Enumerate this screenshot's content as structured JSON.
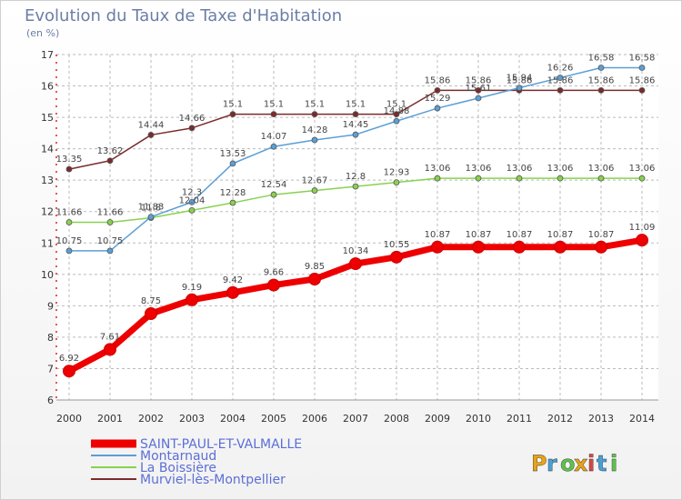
{
  "title": "Evolution du Taux de Taxe d'Habitation",
  "unit": "(en %)",
  "logo": "Proxiti",
  "chart_data": {
    "type": "line",
    "title": "Evolution du Taux de Taxe d'Habitation",
    "ylabel": "(en %)",
    "x": [
      "2000",
      "2001",
      "2002",
      "2003",
      "2004",
      "2005",
      "2006",
      "2007",
      "2008",
      "2009",
      "2010",
      "2011",
      "2012",
      "2013",
      "2014"
    ],
    "ylim": [
      6,
      17
    ],
    "yticks": [
      "6",
      "7",
      "8",
      "9",
      "10",
      "11",
      "12",
      "13",
      "14",
      "15",
      "16",
      "17"
    ],
    "grid": true,
    "legend_position": "bottom-left",
    "series": [
      {
        "name": "SAINT-PAUL-ET-VALMALLE",
        "color": "#ee0000",
        "values": [
          6.92,
          7.61,
          8.75,
          9.19,
          9.42,
          9.66,
          9.85,
          10.34,
          10.55,
          10.87,
          10.87,
          10.87,
          10.87,
          10.87,
          11.09
        ],
        "labels": [
          "6.92",
          "7.61",
          "8.75",
          "9.19",
          "9.42",
          "9.66",
          "9.85",
          "10.34",
          "10.55",
          "10.87",
          "10.87",
          "10.87",
          "10.87",
          "10.87",
          "11.09"
        ]
      },
      {
        "name": "Montarnaud",
        "color": "#5b9fd6",
        "values": [
          10.75,
          10.75,
          11.83,
          12.3,
          13.53,
          14.07,
          14.28,
          14.45,
          14.88,
          15.29,
          15.61,
          15.94,
          16.26,
          16.58,
          16.58
        ],
        "labels": [
          "10.75",
          "10.75",
          "11.83",
          "12.3",
          "13.53",
          "14.07",
          "14.28",
          "14.45",
          "14.88",
          "15.29",
          "15.61",
          "15.94",
          "16.26",
          "16.58",
          "16.58"
        ]
      },
      {
        "name": "La Boissière",
        "color": "#88d24f",
        "values": [
          11.66,
          11.66,
          11.8,
          12.04,
          12.28,
          12.54,
          12.67,
          12.8,
          12.93,
          13.06,
          13.06,
          13.06,
          13.06,
          13.06,
          13.06
        ],
        "labels": [
          "11.66",
          "11.66",
          "11.8",
          "12.04",
          "12.28",
          "12.54",
          "12.67",
          "12.8",
          "12.93",
          "13.06",
          "13.06",
          "13.06",
          "13.06",
          "13.06",
          "13.06"
        ]
      },
      {
        "name": "Murviel-lès-Montpellier",
        "color": "#7b2b2b",
        "values": [
          13.35,
          13.62,
          14.44,
          14.66,
          15.1,
          15.1,
          15.1,
          15.1,
          15.1,
          15.86,
          15.86,
          15.86,
          15.86,
          15.86,
          15.86
        ],
        "labels": [
          "13.35",
          "13.62",
          "14.44",
          "14.66",
          "15.1",
          "15.1",
          "15.1",
          "15.1",
          "15.1",
          "15.86",
          "15.86",
          "15.86",
          "15.86",
          "15.86",
          "15.86"
        ]
      }
    ]
  }
}
